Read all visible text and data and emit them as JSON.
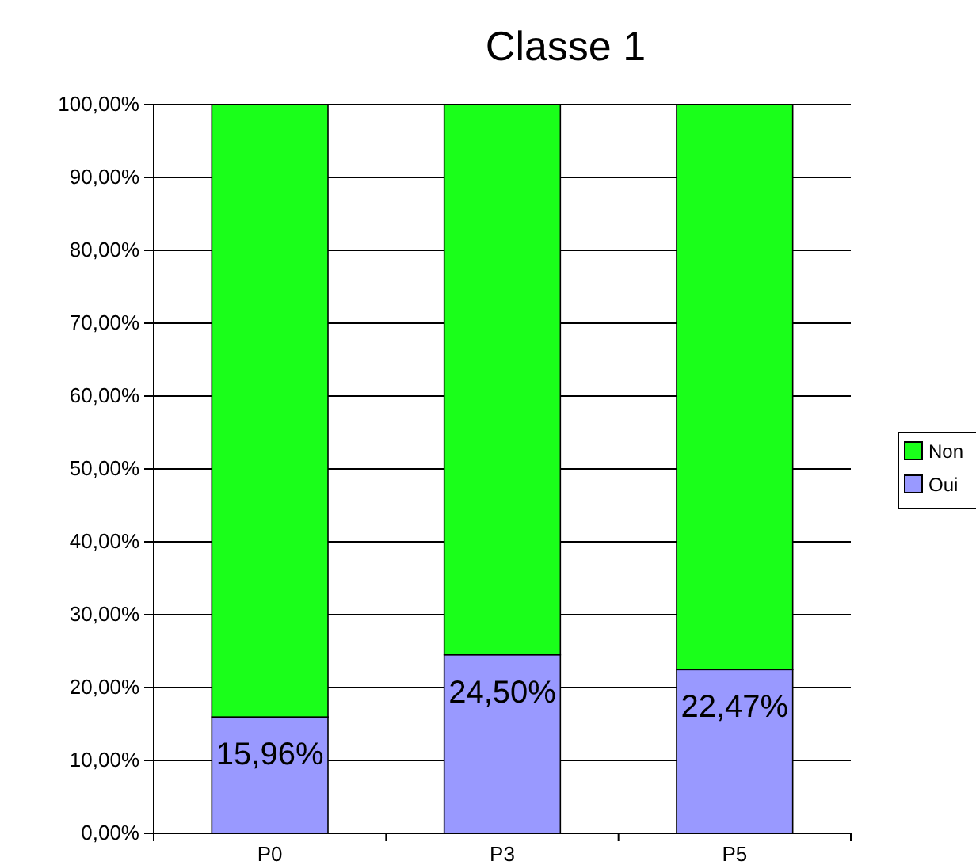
{
  "chart_data": {
    "type": "bar",
    "title": "Classe 1",
    "stacked": true,
    "categories": [
      "P0",
      "P3",
      "P5"
    ],
    "series": [
      {
        "name": "Oui",
        "color": "#9999ff",
        "values": [
          15.96,
          24.5,
          22.47
        ],
        "value_labels": [
          "15,96%",
          "24,50%",
          "22,47%"
        ]
      },
      {
        "name": "Non",
        "color": "#1aff1a",
        "values": [
          84.04,
          75.5,
          77.53
        ]
      }
    ],
    "ylim": [
      0,
      100
    ],
    "yticks": [
      {
        "value": 0,
        "label": "0,00%"
      },
      {
        "value": 10,
        "label": "10,00%"
      },
      {
        "value": 20,
        "label": "20,00%"
      },
      {
        "value": 30,
        "label": "30,00%"
      },
      {
        "value": 40,
        "label": "40,00%"
      },
      {
        "value": 50,
        "label": "50,00%"
      },
      {
        "value": 60,
        "label": "60,00%"
      },
      {
        "value": 70,
        "label": "70,00%"
      },
      {
        "value": 80,
        "label": "80,00%"
      },
      {
        "value": 90,
        "label": "90,00%"
      },
      {
        "value": 100,
        "label": "100,00%"
      }
    ],
    "grid": "y",
    "legend": "right"
  }
}
